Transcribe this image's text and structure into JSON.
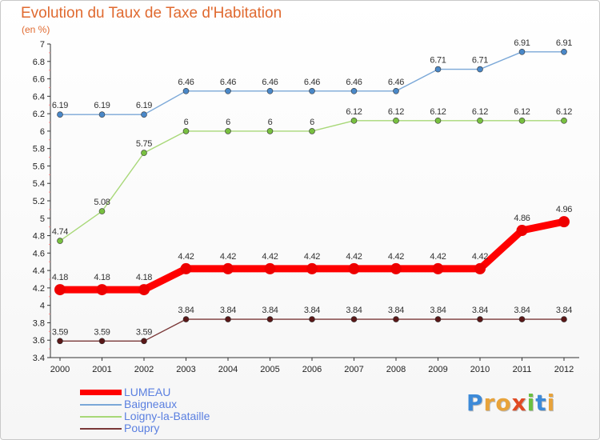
{
  "header": {
    "title": "Evolution du Taux de Taxe d'Habitation",
    "subtitle": "(en %)"
  },
  "brand": {
    "letters": [
      "P",
      "r",
      "o",
      "x",
      "i",
      "t",
      "i"
    ],
    "letter_colors": [
      "#3d8ad8",
      "#e8a33a",
      "#e8a33a",
      "#e04a24",
      "#6ac040",
      "#3d8ad8",
      "#e8a33a"
    ]
  },
  "chart_data": {
    "type": "line",
    "title": "Evolution du Taux de Taxe d'Habitation",
    "subtitle": "(en %)",
    "xlabel": "",
    "ylabel": "",
    "x": [
      "2000",
      "2001",
      "2002",
      "2003",
      "2004",
      "2005",
      "2006",
      "2007",
      "2008",
      "2009",
      "2010",
      "2011",
      "2012"
    ],
    "ylim": [
      3.4,
      7
    ],
    "yticks": [
      "3.4",
      "3.6",
      "3.8",
      "4",
      "4.2",
      "4.4",
      "4.6",
      "4.8",
      "5",
      "5.2",
      "5.4",
      "5.6",
      "5.8",
      "6",
      "6.2",
      "6.4",
      "6.6",
      "6.8",
      "7"
    ],
    "grid": false,
    "legend_position": "bottom-left",
    "series": [
      {
        "name": "LUMEAU",
        "color": "#ff0000",
        "marker_color": "#ee0000",
        "emphasis": true,
        "values": [
          4.18,
          4.18,
          4.18,
          4.42,
          4.42,
          4.42,
          4.42,
          4.42,
          4.42,
          4.42,
          4.42,
          4.86,
          4.96
        ],
        "labels": [
          "4.18",
          "4.18",
          "4.18",
          "4.42",
          "4.42",
          "4.42",
          "4.42",
          "4.42",
          "4.42",
          "4.42",
          "4.42",
          "4.86",
          "4.96"
        ]
      },
      {
        "name": "Baigneaux",
        "color": "#7ba8d8",
        "marker_color": "#4a88c8",
        "emphasis": false,
        "values": [
          6.19,
          6.19,
          6.19,
          6.46,
          6.46,
          6.46,
          6.46,
          6.46,
          6.46,
          6.71,
          6.71,
          6.91,
          6.91
        ],
        "labels": [
          "6.19",
          "6.19",
          "6.19",
          "6.46",
          "6.46",
          "6.46",
          "6.46",
          "6.46",
          "6.46",
          "6.71",
          "6.71",
          "6.91",
          "6.91"
        ]
      },
      {
        "name": "Loigny-la-Bataille",
        "color": "#a8d878",
        "marker_color": "#78c040",
        "emphasis": false,
        "values": [
          4.74,
          5.08,
          5.75,
          6,
          6,
          6,
          6,
          6.12,
          6.12,
          6.12,
          6.12,
          6.12,
          6.12
        ],
        "labels": [
          "4.74",
          "5.08",
          "5.75",
          "6",
          "6",
          "6",
          "6",
          "6.12",
          "6.12",
          "6.12",
          "6.12",
          "6.12",
          "6.12"
        ]
      },
      {
        "name": "Poupry",
        "color": "#7a3838",
        "marker_color": "#5a1818",
        "emphasis": false,
        "values": [
          3.59,
          3.59,
          3.59,
          3.84,
          3.84,
          3.84,
          3.84,
          3.84,
          3.84,
          3.84,
          3.84,
          3.84,
          3.84
        ],
        "labels": [
          "3.59",
          "3.59",
          "3.59",
          "3.84",
          "3.84",
          "3.84",
          "3.84",
          "3.84",
          "3.84",
          "3.84",
          "3.84",
          "3.84",
          "3.84"
        ]
      }
    ]
  }
}
